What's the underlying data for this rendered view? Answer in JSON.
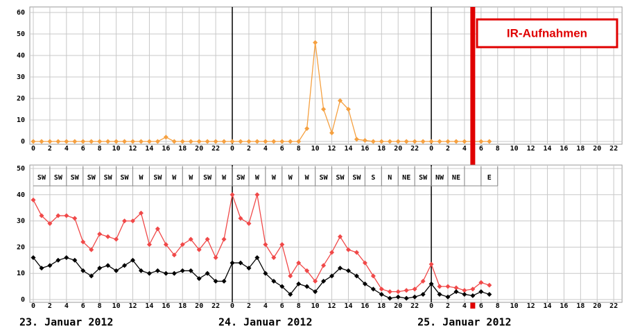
{
  "chart_data": [
    {
      "type": "line",
      "ylim": [
        0,
        60
      ],
      "yticks": [
        0,
        10,
        20,
        30,
        40,
        50,
        60
      ],
      "xlim": [
        0,
        71
      ],
      "xticks": [
        0,
        2,
        4,
        6,
        8,
        10,
        12,
        14,
        16,
        18,
        20,
        22,
        {
          "value": 24,
          "label": "0"
        },
        {
          "value": 26,
          "label": "2"
        },
        {
          "value": 28,
          "label": "4"
        },
        {
          "value": 30,
          "label": "6"
        },
        {
          "value": 32,
          "label": "8"
        },
        {
          "value": 34,
          "label": "10"
        },
        {
          "value": 36,
          "label": "12"
        },
        {
          "value": 38,
          "label": "14"
        },
        {
          "value": 40,
          "label": "16"
        },
        {
          "value": 42,
          "label": "18"
        },
        {
          "value": 44,
          "label": "20"
        },
        {
          "value": 46,
          "label": "22"
        },
        {
          "value": 48,
          "label": "0"
        },
        {
          "value": 50,
          "label": "2"
        },
        {
          "value": 52,
          "label": "4"
        },
        {
          "value": 54,
          "label": "6"
        },
        {
          "value": 56,
          "label": "8"
        },
        {
          "value": 58,
          "label": "10"
        },
        {
          "value": 60,
          "label": "12"
        },
        {
          "value": 62,
          "label": "14"
        },
        {
          "value": 64,
          "label": "16"
        },
        {
          "value": 66,
          "label": "18"
        },
        {
          "value": 68,
          "label": "20"
        },
        {
          "value": 70,
          "label": "22"
        }
      ],
      "grid": true,
      "x": [
        0,
        1,
        2,
        3,
        4,
        5,
        6,
        7,
        8,
        9,
        10,
        11,
        12,
        13,
        14,
        15,
        16,
        17,
        18,
        19,
        20,
        21,
        22,
        23,
        24,
        25,
        26,
        27,
        28,
        29,
        30,
        31,
        32,
        33,
        34,
        35,
        36,
        37,
        38,
        39,
        40,
        41,
        42,
        43,
        44,
        45,
        46,
        47,
        48,
        49,
        50,
        51,
        52,
        53,
        54,
        55
      ],
      "series": [
        {
          "color": "#f5a040",
          "values": [
            0,
            0,
            0,
            0,
            0,
            0,
            0,
            0,
            0,
            0,
            0,
            0,
            0,
            0,
            0,
            0,
            2,
            0,
            0,
            0,
            0,
            0,
            0,
            0,
            0,
            0,
            0,
            0,
            0,
            0,
            0,
            0,
            0,
            6,
            46,
            15,
            4,
            19,
            15,
            1,
            0.5,
            0,
            0,
            0,
            0,
            0,
            0,
            0,
            0,
            0,
            0,
            0,
            0,
            0,
            0,
            0
          ]
        }
      ],
      "annotation": {
        "text": "IR-Aufnahmen",
        "x": 53
      }
    },
    {
      "type": "line",
      "ylim": [
        0,
        50
      ],
      "yticks": [
        0,
        10,
        20,
        30,
        40,
        50
      ],
      "xlim": [
        0,
        71
      ],
      "xticks": [
        0,
        2,
        4,
        6,
        8,
        10,
        12,
        14,
        16,
        18,
        20,
        22,
        {
          "value": 24,
          "label": "0"
        },
        {
          "value": 26,
          "label": "2"
        },
        {
          "value": 28,
          "label": "4"
        },
        {
          "value": 30,
          "label": "6"
        },
        {
          "value": 32,
          "label": "8"
        },
        {
          "value": 34,
          "label": "10"
        },
        {
          "value": 36,
          "label": "12"
        },
        {
          "value": 38,
          "label": "14"
        },
        {
          "value": 40,
          "label": "16"
        },
        {
          "value": 42,
          "label": "18"
        },
        {
          "value": 44,
          "label": "20"
        },
        {
          "value": 46,
          "label": "22"
        },
        {
          "value": 48,
          "label": "0"
        },
        {
          "value": 50,
          "label": "2"
        },
        {
          "value": 52,
          "label": "4"
        },
        {
          "value": 54,
          "label": "6"
        },
        {
          "value": 56,
          "label": "8"
        },
        {
          "value": 58,
          "label": "10"
        },
        {
          "value": 60,
          "label": "12"
        },
        {
          "value": 62,
          "label": "14"
        },
        {
          "value": 64,
          "label": "16"
        },
        {
          "value": 66,
          "label": "18"
        },
        {
          "value": 68,
          "label": "20"
        },
        {
          "value": 70,
          "label": "22"
        }
      ],
      "grid": true,
      "wind": [
        "SW",
        "SW",
        "SW",
        "SW",
        "SW",
        "SW",
        "W",
        "SW",
        "W",
        "W",
        "SW",
        "W",
        "SW",
        "W",
        "W",
        "W",
        "W",
        "SW",
        "SW",
        "SW",
        "S",
        "N",
        "NE",
        "SW",
        "NW",
        "NE",
        null,
        "E"
      ],
      "x": [
        0,
        1,
        2,
        3,
        4,
        5,
        6,
        7,
        8,
        9,
        10,
        11,
        12,
        13,
        14,
        15,
        16,
        17,
        18,
        19,
        20,
        21,
        22,
        23,
        24,
        25,
        26,
        27,
        28,
        29,
        30,
        31,
        32,
        33,
        34,
        35,
        36,
        37,
        38,
        39,
        40,
        41,
        42,
        43,
        44,
        45,
        46,
        47,
        48,
        49,
        50,
        51,
        52,
        53,
        54,
        55
      ],
      "series": [
        {
          "color": "#f04848",
          "values": [
            38,
            32,
            29,
            32,
            32,
            31,
            22,
            19,
            25,
            24,
            23,
            30,
            30,
            33,
            21,
            27,
            21,
            17,
            21,
            23,
            19,
            23,
            16,
            23,
            40,
            31,
            29,
            40,
            21,
            16,
            21,
            9,
            14,
            11,
            7,
            13,
            18,
            24,
            19,
            18,
            14,
            9,
            4,
            3,
            3,
            3.5,
            4,
            7,
            13.5,
            5,
            5,
            4.5,
            3.5,
            4,
            6.5,
            5.5
          ]
        },
        {
          "color": "#000000",
          "values": [
            16,
            12,
            13,
            15,
            16,
            15,
            11,
            9,
            12,
            13,
            11,
            13,
            15,
            11,
            10,
            11,
            10,
            10,
            11,
            11,
            8,
            10,
            7,
            7,
            14,
            14,
            12,
            16,
            10,
            7,
            5,
            2,
            6,
            5,
            3,
            7,
            9,
            12,
            11,
            9,
            6,
            4,
            2,
            0.5,
            1,
            0.5,
            1,
            2,
            6,
            2,
            1,
            3,
            2,
            1.5,
            3,
            2
          ]
        }
      ],
      "date_labels": [
        {
          "value": 0,
          "label": "23. Januar 2012"
        },
        {
          "value": 24,
          "label": "24. Januar 2012"
        },
        {
          "value": 48,
          "label": "25. Januar 2012"
        }
      ]
    }
  ]
}
